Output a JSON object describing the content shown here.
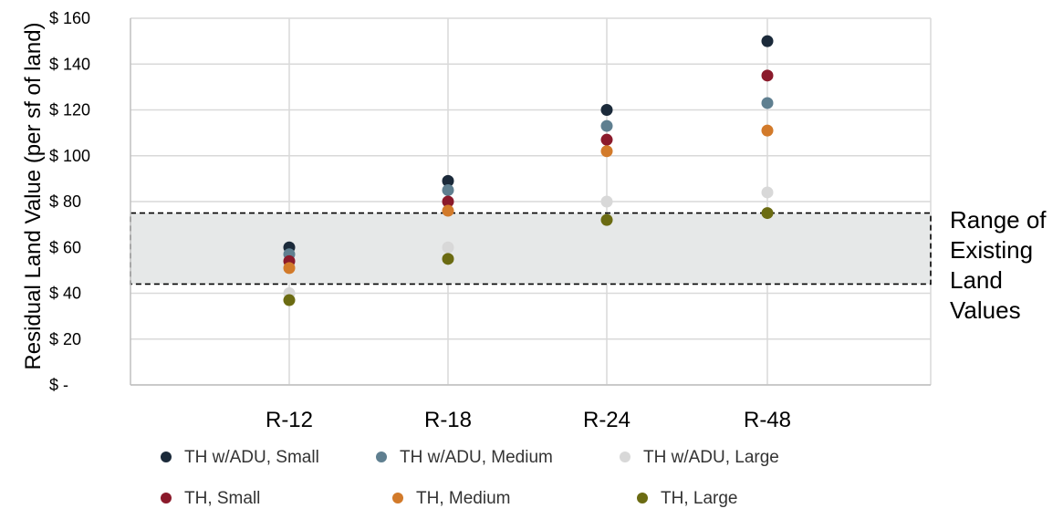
{
  "chart_data": {
    "type": "scatter",
    "ylabel": "Residual Land Value (per sf of land)",
    "xlabel": "",
    "categories": [
      "R-12",
      "R-18",
      "R-24",
      "R-48"
    ],
    "ylim": [
      0,
      160
    ],
    "y_ticks": [
      {
        "value": 0,
        "label": "$ -"
      },
      {
        "value": 20,
        "label": "$ 20"
      },
      {
        "value": 40,
        "label": "$ 40"
      },
      {
        "value": 60,
        "label": "$ 60"
      },
      {
        "value": 80,
        "label": "$ 80"
      },
      {
        "value": 100,
        "label": "$ 100"
      },
      {
        "value": 120,
        "label": "$ 120"
      },
      {
        "value": 140,
        "label": "$ 140"
      },
      {
        "value": 160,
        "label": "$ 160"
      }
    ],
    "grid": true,
    "series": [
      {
        "name": "TH w/ADU, Small",
        "color": "#1b2a3a",
        "values": [
          60,
          89,
          120,
          150
        ]
      },
      {
        "name": "TH w/ADU, Medium",
        "color": "#5f7f90",
        "values": [
          57,
          85,
          113,
          123
        ]
      },
      {
        "name": "TH w/ADU, Large",
        "color": "#d8d8d8",
        "values": [
          40,
          60,
          80,
          84
        ]
      },
      {
        "name": "TH, Small",
        "color": "#8b1a2b",
        "values": [
          54,
          80,
          107,
          135
        ]
      },
      {
        "name": "TH, Medium",
        "color": "#d27a2a",
        "values": [
          51,
          76,
          102,
          111
        ]
      },
      {
        "name": "TH, Large",
        "color": "#6b6b12",
        "values": [
          37,
          55,
          72,
          75
        ]
      }
    ],
    "range_band": {
      "low": 44,
      "high": 75,
      "label_lines": [
        "Range of",
        "Existing",
        "Land",
        "Values"
      ]
    },
    "legend_position": "bottom"
  }
}
